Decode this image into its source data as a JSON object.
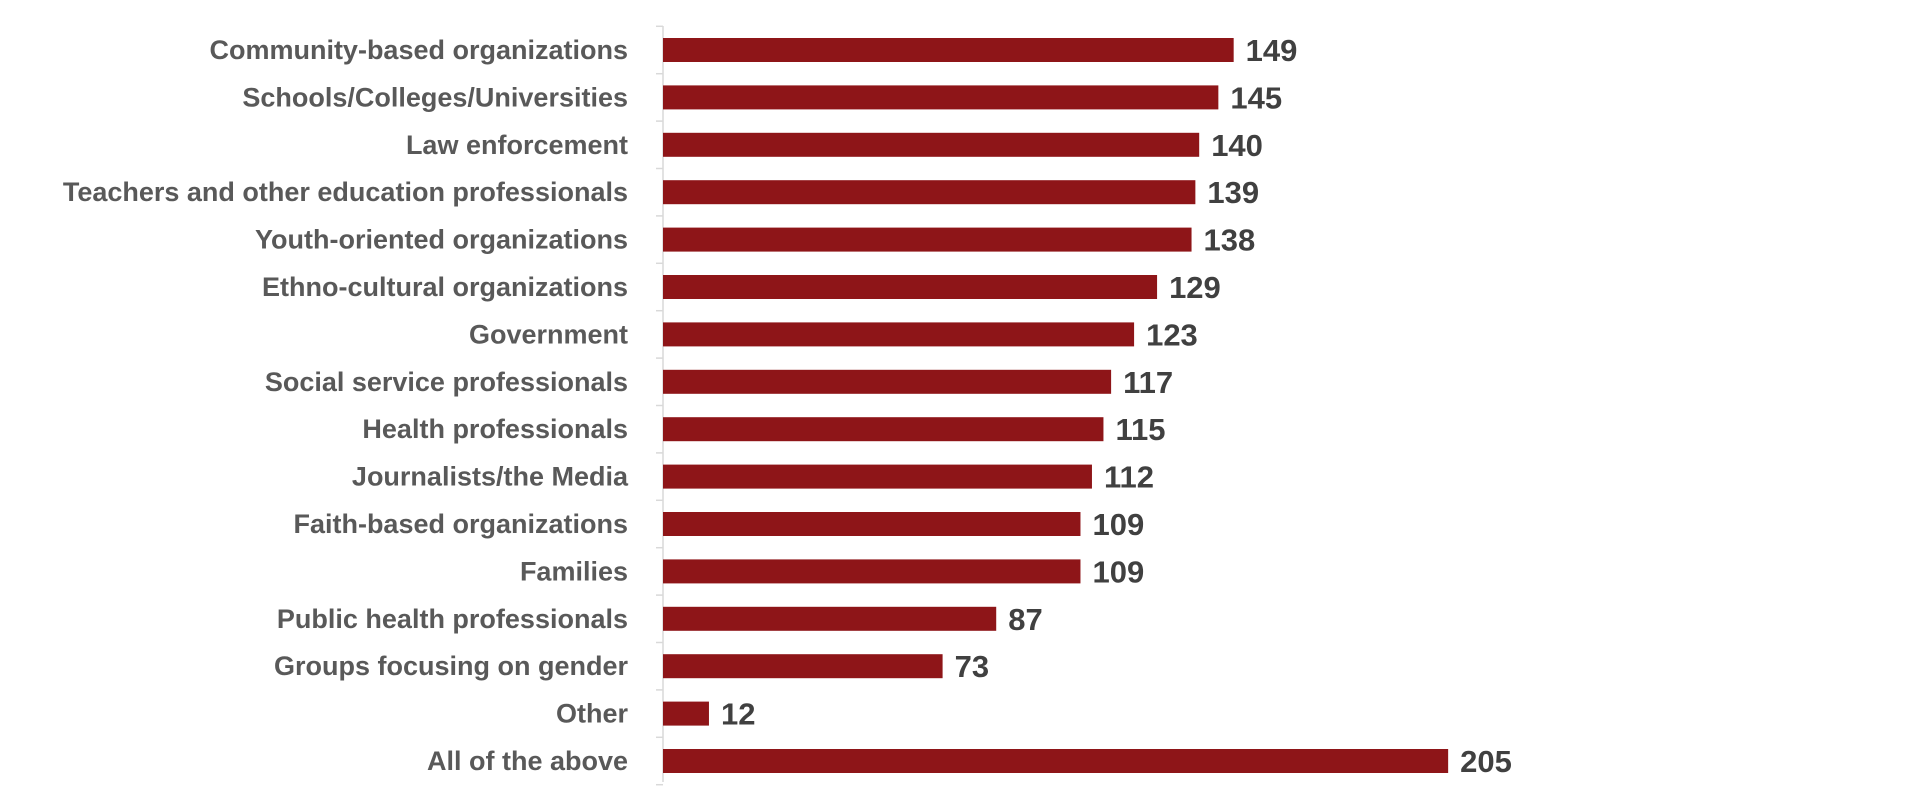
{
  "chart_data": {
    "type": "bar",
    "orientation": "horizontal",
    "title": "",
    "xlabel": "",
    "ylabel": "",
    "xlim": [
      0,
      220
    ],
    "grid": false,
    "legend": "none",
    "bar_color": "#8e1518",
    "categories": [
      "Community-based organizations",
      "Schools/Colleges/Universities",
      "Law enforcement",
      "Teachers and other education professionals",
      "Youth-oriented organizations",
      "Ethno-cultural organizations",
      "Government",
      "Social service professionals",
      "Health professionals",
      "Journalists/the Media",
      "Faith-based organizations",
      "Families",
      "Public health professionals",
      "Groups focusing on gender",
      "Other",
      "All of the above"
    ],
    "values": [
      149,
      145,
      140,
      139,
      138,
      129,
      123,
      117,
      115,
      112,
      109,
      109,
      87,
      73,
      12,
      205
    ],
    "value_labels": [
      "149",
      "145",
      "140",
      "139",
      "138",
      "129",
      "123",
      "117",
      "115",
      "112",
      "109",
      "109",
      "87",
      "73",
      "12",
      "205"
    ]
  }
}
